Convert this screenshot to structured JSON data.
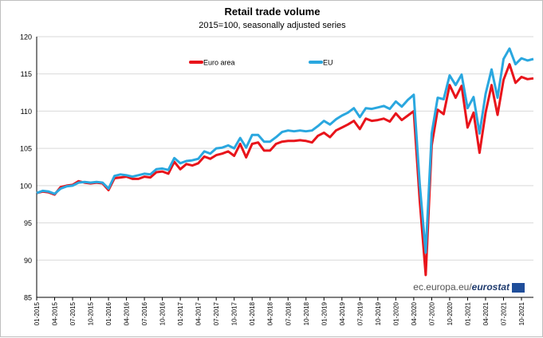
{
  "chart_data": {
    "type": "line",
    "title": "Retail trade volume",
    "subtitle": "2015=100, seasonally adjusted series",
    "xlabel": "",
    "ylabel": "",
    "ylim": [
      85,
      120
    ],
    "yticks": [
      85,
      90,
      95,
      100,
      105,
      110,
      115,
      120
    ],
    "xtick_labels": [
      "01-2015",
      "04-2015",
      "07-2015",
      "10-2015",
      "01-2016",
      "04-2016",
      "07-2016",
      "10-2016",
      "01-2017",
      "04-2017",
      "07-2017",
      "10-2017",
      "01-2018",
      "04-2018",
      "07-2018",
      "10-2018",
      "01-2019",
      "04-2019",
      "07-2019",
      "10-2019",
      "01-2020",
      "04-2020",
      "07-2020",
      "10-2020",
      "01-2021",
      "04-2021",
      "07-2021",
      "10-2021"
    ],
    "legend_position": "top-center",
    "grid": "horizontal",
    "series": [
      {
        "name": "Euro area",
        "color": "#e8141b",
        "values": [
          99.0,
          99.2,
          99.1,
          98.8,
          99.8,
          100.0,
          100.1,
          100.6,
          100.4,
          100.3,
          100.4,
          100.3,
          99.4,
          101.0,
          101.1,
          101.2,
          100.9,
          100.9,
          101.2,
          101.1,
          101.8,
          101.9,
          101.6,
          103.2,
          102.2,
          102.9,
          102.7,
          103.0,
          103.9,
          103.6,
          104.1,
          104.3,
          104.6,
          104.0,
          105.6,
          103.8,
          105.6,
          105.8,
          104.7,
          104.7,
          105.6,
          105.9,
          106.0,
          106.0,
          106.1,
          106.0,
          105.8,
          106.7,
          107.1,
          106.5,
          107.4,
          107.8,
          108.2,
          108.7,
          107.6,
          109.0,
          108.7,
          108.8,
          109.0,
          108.6,
          109.7,
          108.8,
          109.4,
          110.0,
          98.0,
          88.0,
          105.4,
          110.2,
          109.6,
          113.5,
          111.8,
          113.4,
          107.8,
          109.8,
          104.4,
          109.8,
          113.5,
          109.5,
          114.2,
          116.3,
          113.8,
          114.6,
          114.3,
          114.4
        ]
      },
      {
        "name": "EU",
        "color": "#2aa7df",
        "values": [
          99.0,
          99.3,
          99.2,
          98.9,
          99.6,
          99.9,
          100.0,
          100.4,
          100.5,
          100.4,
          100.5,
          100.4,
          99.6,
          101.3,
          101.5,
          101.4,
          101.2,
          101.4,
          101.6,
          101.5,
          102.2,
          102.3,
          102.1,
          103.7,
          103.0,
          103.3,
          103.4,
          103.6,
          104.6,
          104.3,
          105.0,
          105.1,
          105.4,
          105.0,
          106.4,
          105.1,
          106.8,
          106.8,
          105.9,
          105.9,
          106.5,
          107.2,
          107.4,
          107.3,
          107.4,
          107.3,
          107.4,
          108.0,
          108.7,
          108.2,
          108.9,
          109.4,
          109.8,
          110.4,
          109.2,
          110.4,
          110.3,
          110.5,
          110.7,
          110.3,
          111.3,
          110.6,
          111.5,
          112.2,
          100.2,
          91.0,
          107.0,
          111.8,
          111.6,
          114.8,
          113.5,
          114.9,
          110.4,
          111.9,
          107.0,
          112.3,
          115.6,
          111.8,
          117.0,
          118.4,
          116.3,
          117.1,
          116.8,
          117.0
        ]
      }
    ]
  },
  "source_prefix": "ec.europa.eu/",
  "source_brand": "eurostat"
}
